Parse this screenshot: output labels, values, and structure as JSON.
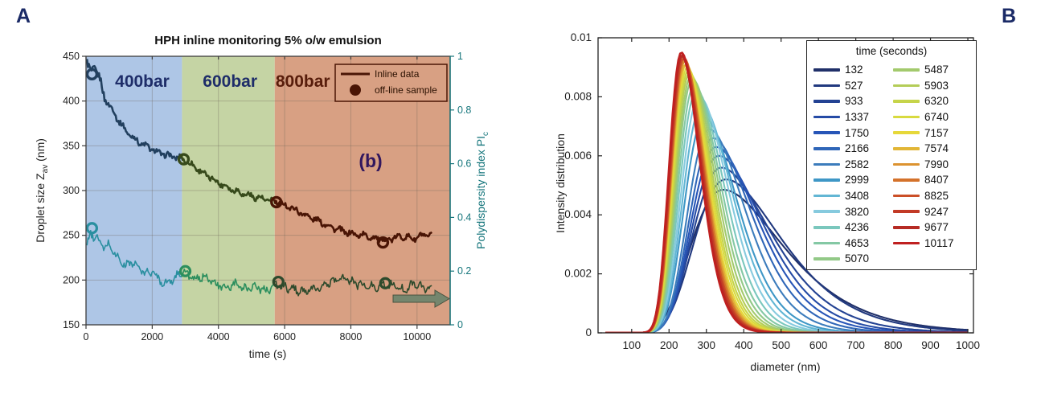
{
  "page": {
    "panel_a_label": "A",
    "panel_b_label": "B"
  },
  "chart_data": [
    {
      "id": "hph_monitoring",
      "type": "line",
      "title": "HPH inline monitoring 5% o/w emulsion",
      "xlabel": "time (s)",
      "ylabel_left_main": "Droplet size Z",
      "ylabel_left_sub": "av",
      "ylabel_left_unit": " (nm)",
      "ylabel_right_main": "Polydispersity index PI",
      "ylabel_right_sub": "c",
      "annotation": "(b)",
      "annotation_color": "#32175e",
      "xlim": [
        0,
        11000
      ],
      "ylim_left": [
        150,
        450
      ],
      "ylim_right": [
        0,
        1
      ],
      "x_ticks": [
        0,
        2000,
        4000,
        6000,
        8000,
        10000
      ],
      "y_left_ticks": [
        150,
        200,
        250,
        300,
        350,
        400,
        450
      ],
      "y_right_ticks": [
        "0",
        "0.2",
        "0.4",
        "0.6",
        "0.8",
        "1"
      ],
      "right_axis_color": "#16767c",
      "frame_color": "#3c3c3c",
      "grid_color": "rgba(110,100,90,0.35)",
      "arrow_color": "#75866e",
      "arrow_edge": "#49523f",
      "regions": [
        {
          "label": "400bar",
          "start": 0,
          "end": 2900,
          "label_t": 1700,
          "bg": "#aec6e6",
          "label_color": "#1e2d69",
          "zav_color": "#22405f",
          "pdi_color": "#2a8fa0"
        },
        {
          "label": "600bar",
          "start": 2900,
          "end": 5700,
          "label_t": 4350,
          "bg": "#c5d4a4",
          "label_color": "#1e2d69",
          "zav_color": "#374a1b",
          "pdi_color": "#2c8f5e"
        },
        {
          "label": "800bar",
          "start": 5700,
          "end": 11000,
          "label_t": 6550,
          "bg": "#d8a083",
          "label_color": "#581d0b",
          "zav_color": "#4a1505",
          "pdi_color": "#2d4a2c"
        }
      ],
      "legend": {
        "bg": "#d8a083",
        "border": "#4a1505",
        "text_color": "#2a1000",
        "items": [
          {
            "label": "Inline data",
            "type": "line"
          },
          {
            "label": "off-line sample",
            "type": "marker"
          }
        ]
      },
      "zav_anchors": [
        [
          0,
          448
        ],
        [
          60,
          438
        ],
        [
          150,
          432
        ],
        [
          250,
          440
        ],
        [
          350,
          430
        ],
        [
          450,
          420
        ],
        [
          550,
          405
        ],
        [
          650,
          398
        ],
        [
          750,
          392
        ],
        [
          850,
          388
        ],
        [
          950,
          380
        ],
        [
          1100,
          372
        ],
        [
          1250,
          365
        ],
        [
          1400,
          360
        ],
        [
          1600,
          354
        ],
        [
          1800,
          350
        ],
        [
          2000,
          346
        ],
        [
          2200,
          342
        ],
        [
          2400,
          340
        ],
        [
          2600,
          338
        ],
        [
          2900,
          336
        ],
        [
          3100,
          331
        ],
        [
          3300,
          326
        ],
        [
          3600,
          318
        ],
        [
          3900,
          311
        ],
        [
          4200,
          305
        ],
        [
          4500,
          300
        ],
        [
          4800,
          296
        ],
        [
          5100,
          293
        ],
        [
          5400,
          290
        ],
        [
          5700,
          288
        ],
        [
          6000,
          284
        ],
        [
          6300,
          279
        ],
        [
          6600,
          273
        ],
        [
          6900,
          268
        ],
        [
          7200,
          263
        ],
        [
          7500,
          258
        ],
        [
          7800,
          254
        ],
        [
          8100,
          251
        ],
        [
          8400,
          250
        ],
        [
          8700,
          247
        ],
        [
          9000,
          244
        ],
        [
          9300,
          247
        ],
        [
          9600,
          249
        ],
        [
          9900,
          246
        ],
        [
          10200,
          250
        ],
        [
          10450,
          249
        ]
      ],
      "pdi_anchors": [
        [
          0,
          0.27
        ],
        [
          120,
          0.34
        ],
        [
          250,
          0.33
        ],
        [
          400,
          0.31
        ],
        [
          550,
          0.285
        ],
        [
          700,
          0.3
        ],
        [
          850,
          0.27
        ],
        [
          1000,
          0.24
        ],
        [
          1200,
          0.22
        ],
        [
          1400,
          0.235
        ],
        [
          1600,
          0.21
        ],
        [
          1800,
          0.19
        ],
        [
          2000,
          0.2
        ],
        [
          2200,
          0.17
        ],
        [
          2400,
          0.155
        ],
        [
          2600,
          0.165
        ],
        [
          2900,
          0.2
        ],
        [
          3100,
          0.185
        ],
        [
          3300,
          0.165
        ],
        [
          3600,
          0.185
        ],
        [
          3900,
          0.15
        ],
        [
          4200,
          0.135
        ],
        [
          4500,
          0.15
        ],
        [
          4800,
          0.135
        ],
        [
          5100,
          0.145
        ],
        [
          5400,
          0.125
        ],
        [
          5700,
          0.15
        ],
        [
          6000,
          0.14
        ],
        [
          6300,
          0.13
        ],
        [
          6600,
          0.125
        ],
        [
          6900,
          0.13
        ],
        [
          7200,
          0.145
        ],
        [
          7500,
          0.165
        ],
        [
          7800,
          0.175
        ],
        [
          8100,
          0.155
        ],
        [
          8400,
          0.145
        ],
        [
          8700,
          0.14
        ],
        [
          9000,
          0.15
        ],
        [
          9300,
          0.145
        ],
        [
          9600,
          0.13
        ],
        [
          9900,
          0.155
        ],
        [
          10200,
          0.135
        ],
        [
          10450,
          0.14
        ]
      ],
      "zav_samples": [
        [
          180,
          430
        ],
        [
          2950,
          335
        ],
        [
          5750,
          287
        ],
        [
          8970,
          242
        ]
      ],
      "pdi_samples": [
        [
          180,
          0.36
        ],
        [
          3000,
          0.2
        ],
        [
          5810,
          0.16
        ],
        [
          9040,
          0.155
        ]
      ]
    },
    {
      "id": "intensity_distribution",
      "type": "line",
      "xlabel": "diameter (nm)",
      "ylabel": "Intensity distribution",
      "legend_title": "time (seconds)",
      "xlim": [
        10,
        1015
      ],
      "ylim": [
        0,
        0.01
      ],
      "x_ticks": [
        100,
        200,
        300,
        400,
        500,
        600,
        700,
        800,
        900,
        1000
      ],
      "y_ticks": [
        "0",
        "0.002",
        "0.004",
        "0.006",
        "0.008",
        "0.01"
      ],
      "frame_color": "#222222",
      "series": [
        {
          "time": 132,
          "color": "#203069",
          "peak_d": 345,
          "peak_h": 0.00485,
          "sigma": 0.29
        },
        {
          "time": 527,
          "color": "#21397f",
          "peak_d": 352,
          "peak_h": 0.0052,
          "sigma": 0.27
        },
        {
          "time": 933,
          "color": "#234293",
          "peak_d": 340,
          "peak_h": 0.0056,
          "sigma": 0.25
        },
        {
          "time": 1337,
          "color": "#254ba6",
          "peak_d": 333,
          "peak_h": 0.006,
          "sigma": 0.235
        },
        {
          "time": 1750,
          "color": "#2755b7",
          "peak_d": 326,
          "peak_h": 0.0063,
          "sigma": 0.225
        },
        {
          "time": 2166,
          "color": "#2f66b8",
          "peak_d": 318,
          "peak_h": 0.0066,
          "sigma": 0.215
        },
        {
          "time": 2582,
          "color": "#3c7cbc",
          "peak_d": 308,
          "peak_h": 0.0069,
          "sigma": 0.205
        },
        {
          "time": 2999,
          "color": "#3e97c6",
          "peak_d": 295,
          "peak_h": 0.0073,
          "sigma": 0.198
        },
        {
          "time": 3408,
          "color": "#62b6d4",
          "peak_d": 288,
          "peak_h": 0.0077,
          "sigma": 0.192
        },
        {
          "time": 3820,
          "color": "#86cade",
          "peak_d": 281,
          "peak_h": 0.008,
          "sigma": 0.186
        },
        {
          "time": 4236,
          "color": "#7ac7bd",
          "peak_d": 274,
          "peak_h": 0.0082,
          "sigma": 0.181
        },
        {
          "time": 4653,
          "color": "#84c8a4",
          "peak_d": 268,
          "peak_h": 0.0084,
          "sigma": 0.176
        },
        {
          "time": 5070,
          "color": "#92c987",
          "peak_d": 263,
          "peak_h": 0.0086,
          "sigma": 0.172
        },
        {
          "time": 5487,
          "color": "#a3ca6d",
          "peak_d": 259,
          "peak_h": 0.0087,
          "sigma": 0.168
        },
        {
          "time": 5903,
          "color": "#b4cd58",
          "peak_d": 255,
          "peak_h": 0.0088,
          "sigma": 0.165
        },
        {
          "time": 6320,
          "color": "#c6d44a",
          "peak_d": 252,
          "peak_h": 0.0089,
          "sigma": 0.162
        },
        {
          "time": 6740,
          "color": "#d8da3f",
          "peak_d": 249,
          "peak_h": 0.009,
          "sigma": 0.16
        },
        {
          "time": 7157,
          "color": "#e6d83a",
          "peak_d": 246,
          "peak_h": 0.0091,
          "sigma": 0.158
        },
        {
          "time": 7574,
          "color": "#e2b636",
          "peak_d": 244,
          "peak_h": 0.0091,
          "sigma": 0.156
        },
        {
          "time": 7990,
          "color": "#dc9330",
          "peak_d": 242,
          "peak_h": 0.0092,
          "sigma": 0.154
        },
        {
          "time": 8407,
          "color": "#d4722b",
          "peak_d": 240,
          "peak_h": 0.0093,
          "sigma": 0.152
        },
        {
          "time": 8825,
          "color": "#cb4f27",
          "peak_d": 238,
          "peak_h": 0.0093,
          "sigma": 0.151
        },
        {
          "time": 9247,
          "color": "#c23a26",
          "peak_d": 236,
          "peak_h": 0.0094,
          "sigma": 0.15
        },
        {
          "time": 9677,
          "color": "#b62b24",
          "peak_d": 234,
          "peak_h": 0.0094,
          "sigma": 0.149
        },
        {
          "time": 10117,
          "color": "#bf2020",
          "peak_d": 233,
          "peak_h": 0.0095,
          "sigma": 0.148
        }
      ]
    }
  ]
}
